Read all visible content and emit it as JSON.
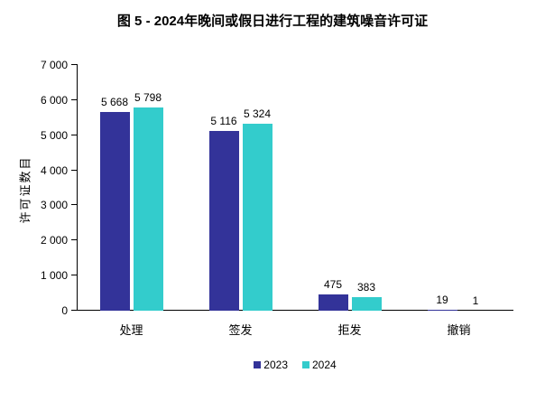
{
  "chart_data": {
    "type": "bar",
    "title": "图 5 - 2024年晚间或假日进行工程的建筑噪音许可证",
    "categories": [
      "处理",
      "签发",
      "拒发",
      "撤销"
    ],
    "series": [
      {
        "name": "2023",
        "color": "#333399",
        "values": [
          5668,
          5116,
          475,
          19
        ],
        "labels": [
          "5 668",
          "5 116",
          "475",
          "19"
        ]
      },
      {
        "name": "2024",
        "color": "#33CCCC",
        "values": [
          5798,
          5324,
          383,
          1
        ],
        "labels": [
          "5 798",
          "5 324",
          "383",
          "1"
        ]
      }
    ],
    "xlabel": "",
    "ylabel": "许可证数目",
    "ylim": [
      0,
      7000
    ],
    "ytick_step": 1000,
    "ytick_labels": [
      "0",
      "1 000",
      "2 000",
      "3 000",
      "4 000",
      "5 000",
      "6 000",
      "7 000"
    ],
    "grid": false,
    "legend_position": "bottom",
    "background": "#FFFFFF",
    "text_color": "#000000",
    "axis_color": "#000000"
  }
}
